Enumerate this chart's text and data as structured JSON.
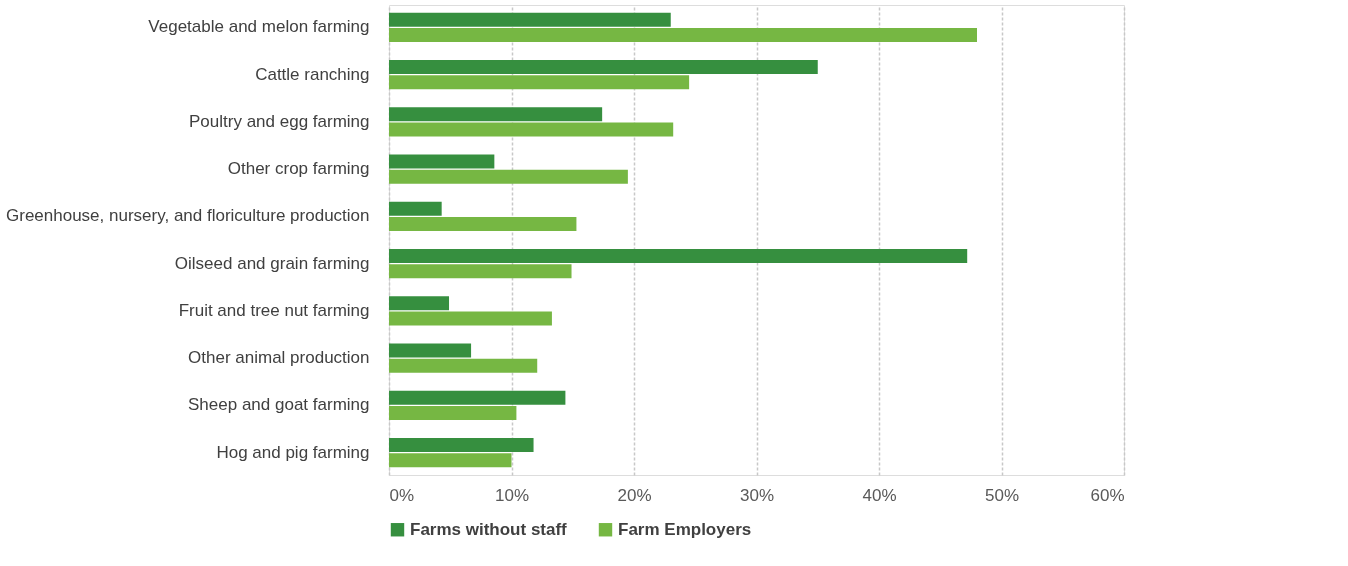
{
  "chart_data": {
    "type": "bar",
    "orientation": "horizontal",
    "categories": [
      "Vegetable and melon farming",
      "Cattle ranching",
      "Poultry and egg farming",
      "Other crop farming",
      "Greenhouse, nursery, and floriculture production",
      "Oilseed and grain farming",
      "Fruit and tree nut farming",
      "Other animal production",
      "Sheep and goat farming",
      "Hog and pig farming"
    ],
    "series": [
      {
        "name": "Farms without staff",
        "color": "#368f3f",
        "values": [
          23.0,
          35.0,
          17.4,
          8.6,
          4.3,
          47.2,
          4.9,
          6.7,
          14.4,
          11.8
        ]
      },
      {
        "name": "Farm Employers",
        "color": "#76b743",
        "values": [
          48.0,
          24.5,
          23.2,
          19.5,
          15.3,
          14.9,
          13.3,
          12.1,
          10.4,
          10.0
        ]
      }
    ],
    "xlim": [
      0,
      60
    ],
    "xticks": [
      {
        "value": 0,
        "label": "0%"
      },
      {
        "value": 10,
        "label": "10%"
      },
      {
        "value": 20,
        "label": "20%"
      },
      {
        "value": 30,
        "label": "30%"
      },
      {
        "value": 40,
        "label": "40%"
      },
      {
        "value": 50,
        "label": "50%"
      },
      {
        "value": 60,
        "label": "60%"
      }
    ],
    "grid": "x",
    "legend": "bottom"
  }
}
